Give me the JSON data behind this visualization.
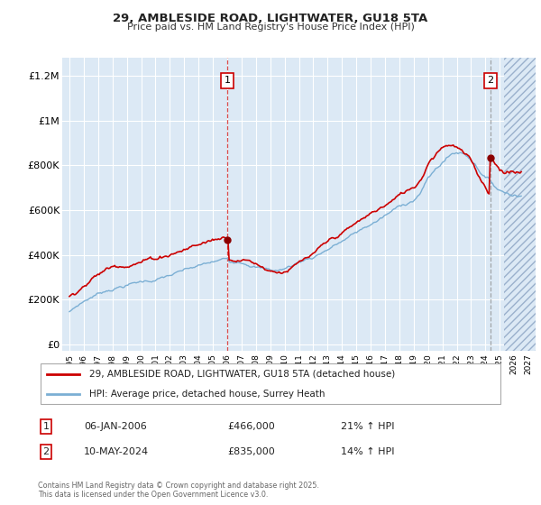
{
  "title_line1": "29, AMBLESIDE ROAD, LIGHTWATER, GU18 5TA",
  "title_line2": "Price paid vs. HM Land Registry's House Price Index (HPI)",
  "ylabel_ticks": [
    "£0",
    "£200K",
    "£400K",
    "£600K",
    "£800K",
    "£1M",
    "£1.2M"
  ],
  "ytick_values": [
    0,
    200000,
    400000,
    600000,
    800000,
    1000000,
    1200000
  ],
  "ylim": [
    -30000,
    1280000
  ],
  "xlim_start": 1994.5,
  "xlim_end": 2027.5,
  "xticks": [
    1995,
    1996,
    1997,
    1998,
    1999,
    2000,
    2001,
    2002,
    2003,
    2004,
    2005,
    2006,
    2007,
    2008,
    2009,
    2010,
    2011,
    2012,
    2013,
    2014,
    2015,
    2016,
    2017,
    2018,
    2019,
    2020,
    2021,
    2022,
    2023,
    2024,
    2025,
    2026,
    2027
  ],
  "bg_color": "#dce9f5",
  "grid_color": "#ffffff",
  "red_line_color": "#cc0000",
  "blue_line_color": "#7bafd4",
  "marker1_x": 2006.02,
  "marker1_y": 466000,
  "marker2_x": 2024.36,
  "marker2_y": 835000,
  "future_start": 2025.3,
  "legend_label1": "29, AMBLESIDE ROAD, LIGHTWATER, GU18 5TA (detached house)",
  "legend_label2": "HPI: Average price, detached house, Surrey Heath",
  "annotation1_date": "06-JAN-2006",
  "annotation1_price": "£466,000",
  "annotation1_hpi": "21% ↑ HPI",
  "annotation2_date": "10-MAY-2024",
  "annotation2_price": "£835,000",
  "annotation2_hpi": "14% ↑ HPI",
  "footer": "Contains HM Land Registry data © Crown copyright and database right 2025.\nThis data is licensed under the Open Government Licence v3.0."
}
